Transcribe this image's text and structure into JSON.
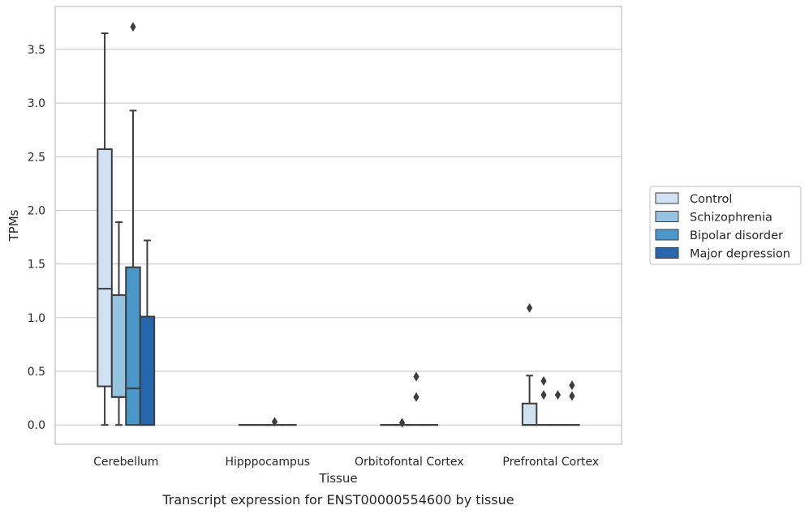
{
  "chart_data": {
    "type": "box",
    "xlabel": "Tissue",
    "ylabel": "TPMs",
    "caption": "Transcript expression for ENST00000554600 by tissue",
    "ylim": [
      -0.18,
      3.9
    ],
    "yticks": [
      "0.0",
      "0.5",
      "1.0",
      "1.5",
      "2.0",
      "2.5",
      "3.0",
      "3.5"
    ],
    "grid": true,
    "legend_position": "right",
    "categories": [
      "Cerebellum",
      "Hipppocampus",
      "Orbitofontal Cortex",
      "Prefrontal Cortex"
    ],
    "series": [
      {
        "name": "Control",
        "color": "#d0e1f2",
        "boxes": [
          {
            "whisker_low": 0.0,
            "q1": 0.36,
            "median": 1.27,
            "q3": 2.57,
            "whisker_high": 3.65,
            "outliers": []
          },
          {
            "whisker_low": 0.0,
            "q1": 0.0,
            "median": 0.0,
            "q3": 0.0,
            "whisker_high": 0.0,
            "outliers": []
          },
          {
            "whisker_low": 0.0,
            "q1": 0.0,
            "median": 0.0,
            "q3": 0.0,
            "whisker_high": 0.0,
            "outliers": []
          },
          {
            "whisker_low": 0.0,
            "q1": 0.0,
            "median": 0.0,
            "q3": 0.2,
            "whisker_high": 0.46,
            "outliers": [
              1.09
            ]
          }
        ]
      },
      {
        "name": "Schizophrenia",
        "color": "#94c4df",
        "boxes": [
          {
            "whisker_low": 0.0,
            "q1": 0.26,
            "median": 0.26,
            "q3": 1.21,
            "whisker_high": 1.89,
            "outliers": []
          },
          {
            "whisker_low": 0.0,
            "q1": 0.0,
            "median": 0.0,
            "q3": 0.0,
            "whisker_high": 0.0,
            "outliers": []
          },
          {
            "whisker_low": 0.0,
            "q1": 0.0,
            "median": 0.0,
            "q3": 0.0,
            "whisker_high": 0.0,
            "outliers": [
              0.02
            ]
          },
          {
            "whisker_low": 0.0,
            "q1": 0.0,
            "median": 0.0,
            "q3": 0.0,
            "whisker_high": 0.0,
            "outliers": [
              0.28,
              0.41
            ]
          }
        ]
      },
      {
        "name": "Bipolar disorder",
        "color": "#4a98c9",
        "boxes": [
          {
            "whisker_low": 0.0,
            "q1": 0.0,
            "median": 0.34,
            "q3": 1.47,
            "whisker_high": 2.93,
            "outliers": [
              3.71
            ]
          },
          {
            "whisker_low": 0.0,
            "q1": 0.0,
            "median": 0.0,
            "q3": 0.0,
            "whisker_high": 0.0,
            "outliers": [
              0.03
            ]
          },
          {
            "whisker_low": 0.0,
            "q1": 0.0,
            "median": 0.0,
            "q3": 0.0,
            "whisker_high": 0.0,
            "outliers": [
              0.26,
              0.45
            ]
          },
          {
            "whisker_low": 0.0,
            "q1": 0.0,
            "median": 0.0,
            "q3": 0.0,
            "whisker_high": 0.0,
            "outliers": [
              0.28
            ]
          }
        ]
      },
      {
        "name": "Major depression",
        "color": "#2666ab",
        "boxes": [
          {
            "whisker_low": 0.0,
            "q1": 0.0,
            "median": 0.0,
            "q3": 1.01,
            "whisker_high": 1.72,
            "outliers": []
          },
          {
            "whisker_low": 0.0,
            "q1": 0.0,
            "median": 0.0,
            "q3": 0.0,
            "whisker_high": 0.0,
            "outliers": []
          },
          {
            "whisker_low": 0.0,
            "q1": 0.0,
            "median": 0.0,
            "q3": 0.0,
            "whisker_high": 0.0,
            "outliers": []
          },
          {
            "whisker_low": 0.0,
            "q1": 0.0,
            "median": 0.0,
            "q3": 0.0,
            "whisker_high": 0.0,
            "outliers": [
              0.27,
              0.37
            ]
          }
        ]
      }
    ]
  }
}
